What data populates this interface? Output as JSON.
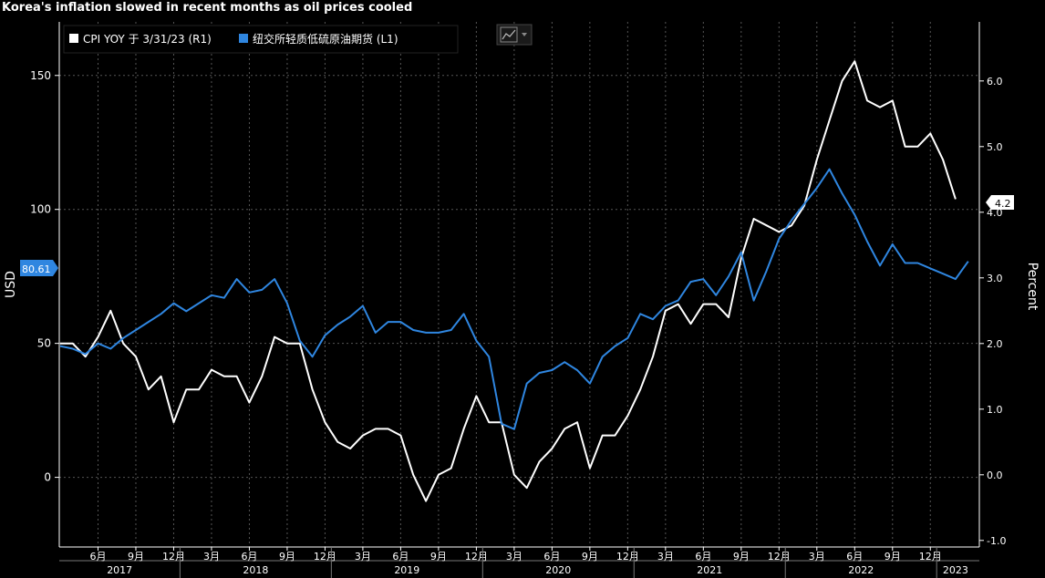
{
  "title": "Korea's inflation slowed in recent months as oil prices cooled",
  "chart_data": {
    "type": "line",
    "title": "Korea's inflation slowed in recent months as oil prices cooled",
    "legend_position": "top-left",
    "grid": true,
    "left_axis": {
      "label": "USD",
      "ticks": [
        0,
        50,
        100,
        150
      ],
      "range": [
        -26,
        170
      ]
    },
    "right_axis": {
      "label": "Percent",
      "ticks": [
        -1.0,
        0.0,
        1.0,
        2.0,
        3.0,
        4.0,
        5.0,
        6.0
      ],
      "range": [
        -1.1,
        6.9
      ]
    },
    "month_labels": [
      "6月",
      "9月",
      "12月",
      "3月"
    ],
    "years": [
      "2017",
      "2018",
      "2019",
      "2020",
      "2021",
      "2022",
      "2023"
    ],
    "start_month": "2017-03",
    "colors": {
      "cpi": "#ffffff",
      "oil": "#2f86e0",
      "background": "#000000",
      "grid": "#555555"
    },
    "series": [
      {
        "name": "CPI YOY 于 3/31/23 (R1)",
        "axis": "right",
        "last_value_label": "4.2",
        "values": [
          2.0,
          2.0,
          1.8,
          2.1,
          2.5,
          2.0,
          1.8,
          1.3,
          1.5,
          0.8,
          1.3,
          1.3,
          1.6,
          1.5,
          1.5,
          1.1,
          1.5,
          2.1,
          2.0,
          2.0,
          1.3,
          0.8,
          0.5,
          0.4,
          0.6,
          0.7,
          0.7,
          0.6,
          0.0,
          -0.4,
          0.0,
          0.1,
          0.7,
          1.2,
          0.8,
          0.8,
          0.0,
          -0.2,
          0.2,
          0.4,
          0.7,
          0.8,
          0.1,
          0.6,
          0.6,
          0.9,
          1.3,
          1.8,
          2.5,
          2.6,
          2.3,
          2.6,
          2.6,
          2.4,
          3.3,
          3.9,
          3.8,
          3.7,
          3.8,
          4.1,
          4.8,
          5.4,
          6.0,
          6.3,
          5.7,
          5.6,
          5.7,
          5.0,
          5.0,
          5.2,
          4.8,
          4.2
        ]
      },
      {
        "name": "纽交所轻质低硫原油期货 (L1)",
        "axis": "left",
        "last_value_label": "80.61",
        "values": [
          49,
          48,
          46,
          50,
          48,
          52,
          55,
          58,
          61,
          65,
          62,
          65,
          68,
          67,
          74,
          69,
          70,
          74,
          65,
          51,
          45,
          53,
          57,
          60,
          64,
          54,
          58,
          58,
          55,
          54,
          54,
          55,
          61,
          51,
          45,
          20,
          18,
          35,
          39,
          40,
          43,
          40,
          35,
          45,
          49,
          52,
          61,
          59,
          64,
          66,
          73,
          74,
          68,
          75,
          84,
          66,
          77,
          89,
          96,
          102,
          108,
          115,
          106,
          98,
          88,
          79,
          87,
          80,
          80,
          78,
          76,
          74,
          80.61
        ]
      }
    ]
  }
}
